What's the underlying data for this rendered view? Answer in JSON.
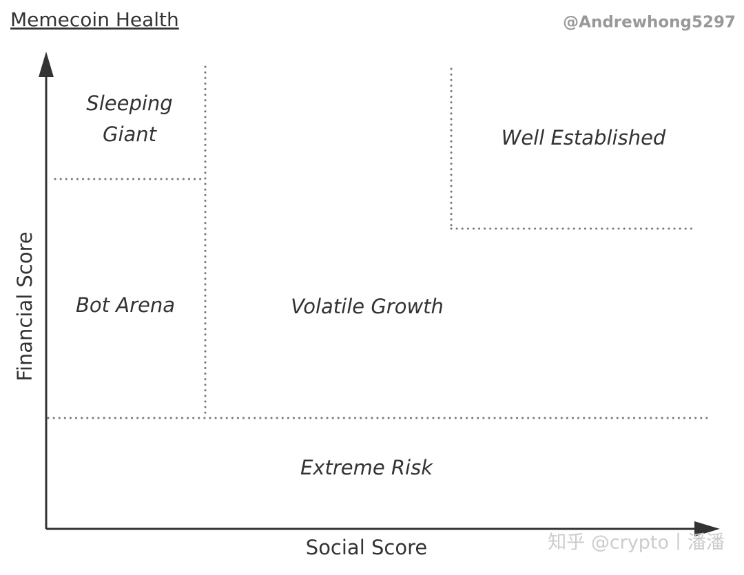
{
  "header": {
    "title": "Memecoin Health",
    "author": "@Andrewhong5297"
  },
  "axes": {
    "x_label": "Social Score",
    "y_label": "Financial Score"
  },
  "regions": [
    {
      "lines": [
        "Sleeping",
        "Giant"
      ]
    },
    {
      "lines": [
        "Bot Arena"
      ]
    },
    {
      "lines": [
        "Volatile Growth"
      ]
    },
    {
      "lines": [
        "Well Established"
      ]
    },
    {
      "lines": [
        "Extreme Risk"
      ]
    }
  ],
  "watermark": "知乎 @crypto丨潘潘"
}
